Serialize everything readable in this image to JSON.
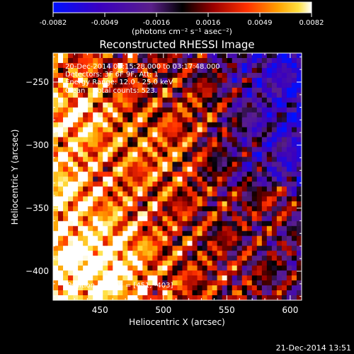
{
  "chart_data": {
    "type": "heatmap",
    "title": "Reconstructed RHESSI Image",
    "xlabel": "Heliocentric X (arcsec)",
    "ylabel": "Heliocentric Y (arcsec)",
    "xlim": [
      413,
      609
    ],
    "ylim": [
      -423,
      -227
    ],
    "x_ticks": [
      450,
      500,
      550,
      600
    ],
    "y_ticks": [
      -250,
      -300,
      -350,
      -400
    ],
    "colorbar": {
      "min": -0.0082,
      "max": 0.0082,
      "ticks": [
        "-0.0082",
        "-0.0049",
        "-0.0016",
        "0.0016",
        "0.0049",
        "0.0082"
      ],
      "units": "(photons cm⁻² s⁻¹ asec⁻²)",
      "colors": [
        "#0000ff",
        "#3300aa",
        "#4a2080",
        "#000000",
        "#8b0000",
        "#ff2a00",
        "#ff9900",
        "#ffe000",
        "#ffffff"
      ]
    },
    "annotations": [
      "20-Dec-2014 03:15:28.000 to 03:17:48.000",
      "Detectors: 3F 6F 9F, Att: 1",
      "Energy Range: 12.0 - 25.0 keV",
      "Clean    Total counts: 523."
    ],
    "peak_label": "Position of Peak = [451, -403]",
    "peak": [
      451,
      -403
    ],
    "timestamp": "21-Dec-2014 13:51",
    "grid": false
  }
}
